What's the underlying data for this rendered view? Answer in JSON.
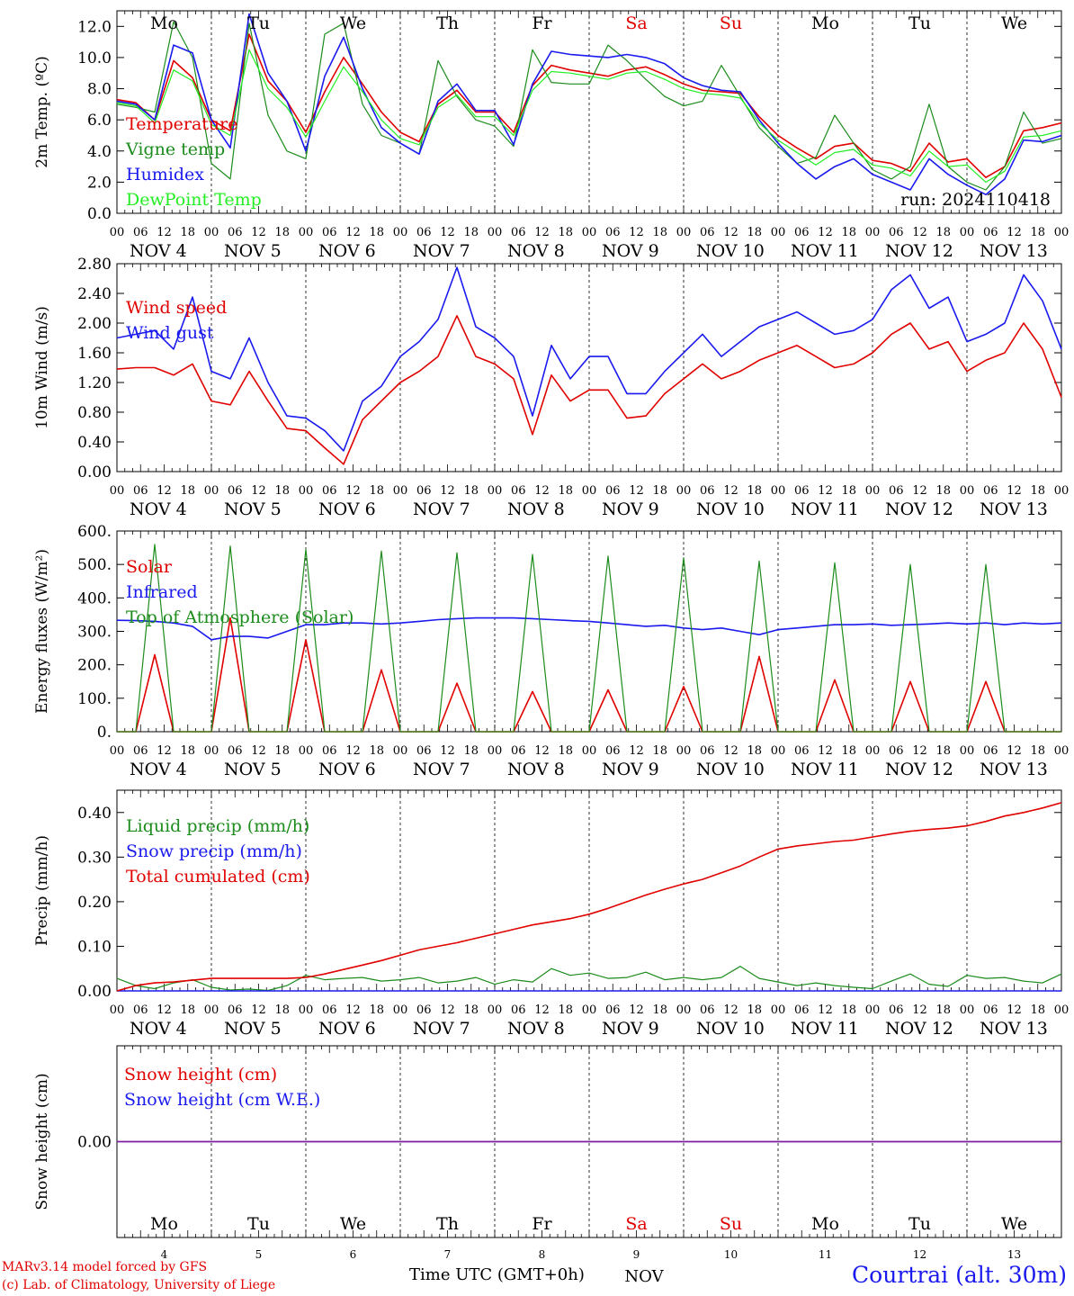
{
  "credits": {
    "model": "MARv3.14 model forced by GFS",
    "lab": "(c) Lab. of Climatology, University of Liege"
  },
  "location": "Courtrai (alt. 30m)",
  "xaxis_label": "Time UTC (GMT+0h)",
  "month_label": "NOV",
  "run_label": "run: 2024110418",
  "days": {
    "weekdays": [
      "Mo",
      "Tu",
      "We",
      "Th",
      "Fr",
      "Sa",
      "Su",
      "Mo",
      "Tu",
      "We"
    ],
    "weekend_flags": [
      false,
      false,
      false,
      false,
      false,
      true,
      true,
      false,
      false,
      false
    ],
    "dates": [
      "NOV  4",
      "NOV  5",
      "NOV  6",
      "NOV  7",
      "NOV  8",
      "NOV  9",
      "NOV 10",
      "NOV 11",
      "NOV 12",
      "NOV 13"
    ],
    "day_numbers": [
      "4",
      "5",
      "6",
      "7",
      "8",
      "9",
      "10",
      "11",
      "12",
      "13"
    ],
    "hour_ticks": [
      "00",
      "06",
      "12",
      "18"
    ],
    "final_tick": "00"
  },
  "colors": {
    "red": "#e00000",
    "green": "#1c8c1c",
    "blue": "#1a1aee",
    "light_green": "#22ee22",
    "purple": "#7a1f9e"
  },
  "chart_data": [
    {
      "type": "line",
      "ylabel": "2m Temp. (ºC)",
      "ylim": [
        0,
        13
      ],
      "yticks": [
        "0.0",
        "2.0",
        "4.0",
        "6.0",
        "8.0",
        "10.0",
        "12.0"
      ],
      "x": "hours since NOV 4 00 UTC, step 6h",
      "series": [
        {
          "name": "Temperature",
          "color": "#e00000",
          "values": [
            7.3,
            7.1,
            6.0,
            9.8,
            8.7,
            6.0,
            5.3,
            11.5,
            8.5,
            7.2,
            5.2,
            7.8,
            10.0,
            8.3,
            6.5,
            5.2,
            4.6,
            7.0,
            7.9,
            6.5,
            6.5,
            5.2,
            8.2,
            9.5,
            9.2,
            9.0,
            8.8,
            9.2,
            9.4,
            8.9,
            8.3,
            7.9,
            7.8,
            7.7,
            6.2,
            5.0,
            4.2,
            3.5,
            4.3,
            4.5,
            3.4,
            3.2,
            2.7,
            4.5,
            3.3,
            3.5,
            2.3,
            3.0,
            5.3,
            5.5,
            5.8
          ]
        },
        {
          "name": "Vigne temp",
          "color": "#1c8c1c",
          "values": [
            7.0,
            6.8,
            6.5,
            12.3,
            10.0,
            3.2,
            2.2,
            12.2,
            6.3,
            4.0,
            3.5,
            11.5,
            12.2,
            7.0,
            5.0,
            4.5,
            3.8,
            9.8,
            7.5,
            6.0,
            5.6,
            4.3,
            10.5,
            8.4,
            8.3,
            8.3,
            10.8,
            9.8,
            8.6,
            7.5,
            6.9,
            7.2,
            9.5,
            7.5,
            5.5,
            4.3,
            3.2,
            3.6,
            6.3,
            4.5,
            2.8,
            2.2,
            3.0,
            7.0,
            3.0,
            2.0,
            1.5,
            3.0,
            6.5,
            4.5,
            4.8
          ]
        },
        {
          "name": "Humidex",
          "color": "#1a1aee",
          "values": [
            7.2,
            7.0,
            6.0,
            10.8,
            10.3,
            6.0,
            4.2,
            12.8,
            9.0,
            7.2,
            4.0,
            8.8,
            11.3,
            8.0,
            5.5,
            4.5,
            3.8,
            7.2,
            8.3,
            6.6,
            6.6,
            4.4,
            8.3,
            10.4,
            10.2,
            10.1,
            10.0,
            10.2,
            10.0,
            9.6,
            8.7,
            8.2,
            7.9,
            7.8,
            6.0,
            4.5,
            3.2,
            2.2,
            3.0,
            3.5,
            2.5,
            2.0,
            1.5,
            3.5,
            2.5,
            1.8,
            1.2,
            2.2,
            4.7,
            4.6,
            5.0
          ]
        },
        {
          "name": "DewPoint Temp",
          "color": "#22ee22",
          "values": [
            7.1,
            6.9,
            5.8,
            9.2,
            8.5,
            5.7,
            5.0,
            10.5,
            8.0,
            6.8,
            4.9,
            7.2,
            9.4,
            7.8,
            6.0,
            4.8,
            4.4,
            6.8,
            7.6,
            6.2,
            6.2,
            5.0,
            7.9,
            9.1,
            9.0,
            8.8,
            8.6,
            9.0,
            9.1,
            8.6,
            8.0,
            7.7,
            7.6,
            7.4,
            5.8,
            4.7,
            3.9,
            3.1,
            3.9,
            4.1,
            3.1,
            2.9,
            2.4,
            4.0,
            3.0,
            3.1,
            2.0,
            2.7,
            4.9,
            5.0,
            5.3
          ]
        }
      ]
    },
    {
      "type": "line",
      "ylabel": "10m Wind (m/s)",
      "ylim": [
        0,
        2.8
      ],
      "yticks": [
        "0.00",
        "0.40",
        "0.80",
        "1.20",
        "1.60",
        "2.00",
        "2.40",
        "2.80"
      ],
      "x": "hours since NOV 4 00 UTC, step 6h",
      "series": [
        {
          "name": "Wind speed",
          "color": "#e00000",
          "values": [
            1.38,
            1.4,
            1.4,
            1.3,
            1.45,
            0.95,
            0.9,
            1.35,
            0.95,
            0.58,
            0.55,
            0.32,
            0.1,
            0.7,
            0.95,
            1.2,
            1.35,
            1.55,
            2.1,
            1.55,
            1.45,
            1.25,
            0.5,
            1.3,
            0.95,
            1.1,
            1.1,
            0.72,
            0.75,
            1.05,
            1.25,
            1.45,
            1.25,
            1.35,
            1.5,
            1.6,
            1.7,
            1.55,
            1.4,
            1.45,
            1.6,
            1.85,
            2.0,
            1.65,
            1.75,
            1.35,
            1.5,
            1.6,
            2.0,
            1.65,
            1.0
          ]
        },
        {
          "name": "Wind gust",
          "color": "#1a1aee",
          "values": [
            1.8,
            1.85,
            1.9,
            1.65,
            2.35,
            1.35,
            1.25,
            1.8,
            1.2,
            0.75,
            0.72,
            0.55,
            0.28,
            0.95,
            1.15,
            1.55,
            1.75,
            2.05,
            2.75,
            1.95,
            1.8,
            1.55,
            0.75,
            1.7,
            1.25,
            1.55,
            1.55,
            1.05,
            1.05,
            1.35,
            1.6,
            1.85,
            1.55,
            1.75,
            1.95,
            2.05,
            2.15,
            2.0,
            1.85,
            1.9,
            2.05,
            2.45,
            2.65,
            2.2,
            2.35,
            1.75,
            1.85,
            2.0,
            2.65,
            2.3,
            1.65
          ]
        }
      ]
    },
    {
      "type": "line",
      "ylabel": "Energy fluxes (W/m²)",
      "ylim": [
        0,
        600
      ],
      "yticks": [
        "0.",
        "100.",
        "200.",
        "300.",
        "400.",
        "500.",
        "600."
      ],
      "x": "hours since NOV 4 00 UTC, step 6h",
      "series": [
        {
          "name": "Solar",
          "color": "#e00000",
          "values": [
            0,
            0,
            230,
            0,
            0,
            0,
            340,
            0,
            0,
            0,
            275,
            0,
            0,
            0,
            185,
            0,
            0,
            0,
            145,
            0,
            0,
            0,
            120,
            0,
            0,
            0,
            125,
            0,
            0,
            0,
            135,
            0,
            0,
            0,
            225,
            0,
            0,
            0,
            155,
            0,
            0,
            0,
            150,
            0,
            0,
            0,
            150,
            0,
            0,
            0,
            0
          ]
        },
        {
          "name": "Infrared",
          "color": "#1a1aee",
          "values": [
            333,
            332,
            330,
            325,
            315,
            275,
            285,
            285,
            280,
            300,
            320,
            320,
            325,
            325,
            322,
            325,
            330,
            335,
            338,
            340,
            340,
            340,
            338,
            335,
            332,
            330,
            325,
            320,
            315,
            318,
            310,
            305,
            310,
            300,
            290,
            305,
            310,
            315,
            320,
            320,
            322,
            318,
            320,
            322,
            325,
            322,
            325,
            320,
            325,
            322,
            325
          ]
        },
        {
          "name": "Top of Atmosphere (Solar)",
          "color": "#1c8c1c",
          "values": [
            0,
            0,
            560,
            0,
            0,
            0,
            555,
            0,
            0,
            0,
            545,
            0,
            0,
            0,
            540,
            0,
            0,
            0,
            535,
            0,
            0,
            0,
            530,
            0,
            0,
            0,
            525,
            0,
            0,
            0,
            520,
            0,
            0,
            0,
            510,
            0,
            0,
            0,
            505,
            0,
            0,
            0,
            500,
            0,
            0,
            0,
            500,
            0,
            0,
            0,
            0
          ]
        }
      ]
    },
    {
      "type": "line",
      "ylabel": "Precip (mm/h)",
      "ylim": [
        0,
        0.45
      ],
      "yticks": [
        "0.00",
        "0.10",
        "0.20",
        "0.30",
        "0.40"
      ],
      "x": "hours since NOV 4 00 UTC, step 6h",
      "series": [
        {
          "name": "Liquid precip (mm/h)",
          "color": "#1c8c1c",
          "values": [
            0.028,
            0.012,
            0.005,
            0.018,
            0.025,
            0.008,
            0.002,
            0.004,
            0.001,
            0.012,
            0.035,
            0.025,
            0.028,
            0.03,
            0.022,
            0.025,
            0.03,
            0.018,
            0.022,
            0.03,
            0.015,
            0.025,
            0.02,
            0.05,
            0.035,
            0.04,
            0.028,
            0.03,
            0.042,
            0.025,
            0.03,
            0.025,
            0.03,
            0.055,
            0.028,
            0.02,
            0.012,
            0.018,
            0.012,
            0.008,
            0.005,
            0.022,
            0.038,
            0.015,
            0.01,
            0.035,
            0.028,
            0.03,
            0.022,
            0.018,
            0.038
          ]
        },
        {
          "name": "Snow precip (mm/h)",
          "color": "#1a1aee",
          "values": [
            0,
            0,
            0,
            0,
            0,
            0,
            0,
            0,
            0,
            0,
            0,
            0,
            0,
            0,
            0,
            0,
            0,
            0,
            0,
            0,
            0,
            0,
            0,
            0,
            0,
            0,
            0,
            0,
            0,
            0,
            0,
            0,
            0,
            0,
            0,
            0,
            0,
            0,
            0,
            0,
            0,
            0,
            0,
            0,
            0,
            0,
            0,
            0,
            0,
            0,
            0
          ]
        },
        {
          "name": "Total cumulated (cm)",
          "color": "#e00000",
          "values": [
            0.0,
            0.012,
            0.018,
            0.02,
            0.024,
            0.028,
            0.028,
            0.028,
            0.028,
            0.028,
            0.03,
            0.038,
            0.048,
            0.058,
            0.068,
            0.08,
            0.092,
            0.1,
            0.108,
            0.118,
            0.128,
            0.138,
            0.148,
            0.155,
            0.162,
            0.172,
            0.185,
            0.2,
            0.215,
            0.228,
            0.24,
            0.25,
            0.265,
            0.28,
            0.3,
            0.318,
            0.325,
            0.33,
            0.335,
            0.338,
            0.345,
            0.352,
            0.358,
            0.362,
            0.365,
            0.37,
            0.38,
            0.392,
            0.4,
            0.41,
            0.422
          ]
        }
      ]
    },
    {
      "type": "line",
      "ylabel": "Snow height (cm)",
      "ylim": [
        -1,
        1
      ],
      "yticks": [
        "0.00"
      ],
      "x": "hours since NOV 4 00 UTC, step 6h",
      "series": [
        {
          "name": "Snow height (cm)",
          "color": "#e00000",
          "values": [
            0,
            0,
            0,
            0,
            0,
            0,
            0,
            0,
            0,
            0,
            0,
            0,
            0,
            0,
            0,
            0,
            0,
            0,
            0,
            0,
            0,
            0,
            0,
            0,
            0,
            0,
            0,
            0,
            0,
            0,
            0,
            0,
            0,
            0,
            0,
            0,
            0,
            0,
            0,
            0,
            0,
            0,
            0,
            0,
            0,
            0,
            0,
            0,
            0,
            0,
            0
          ]
        },
        {
          "name": "Snow height (cm W.E.)",
          "color": "#1a1aee",
          "values": [
            0,
            0,
            0,
            0,
            0,
            0,
            0,
            0,
            0,
            0,
            0,
            0,
            0,
            0,
            0,
            0,
            0,
            0,
            0,
            0,
            0,
            0,
            0,
            0,
            0,
            0,
            0,
            0,
            0,
            0,
            0,
            0,
            0,
            0,
            0,
            0,
            0,
            0,
            0,
            0,
            0,
            0,
            0,
            0,
            0,
            0,
            0,
            0,
            0,
            0,
            0
          ]
        }
      ]
    }
  ]
}
